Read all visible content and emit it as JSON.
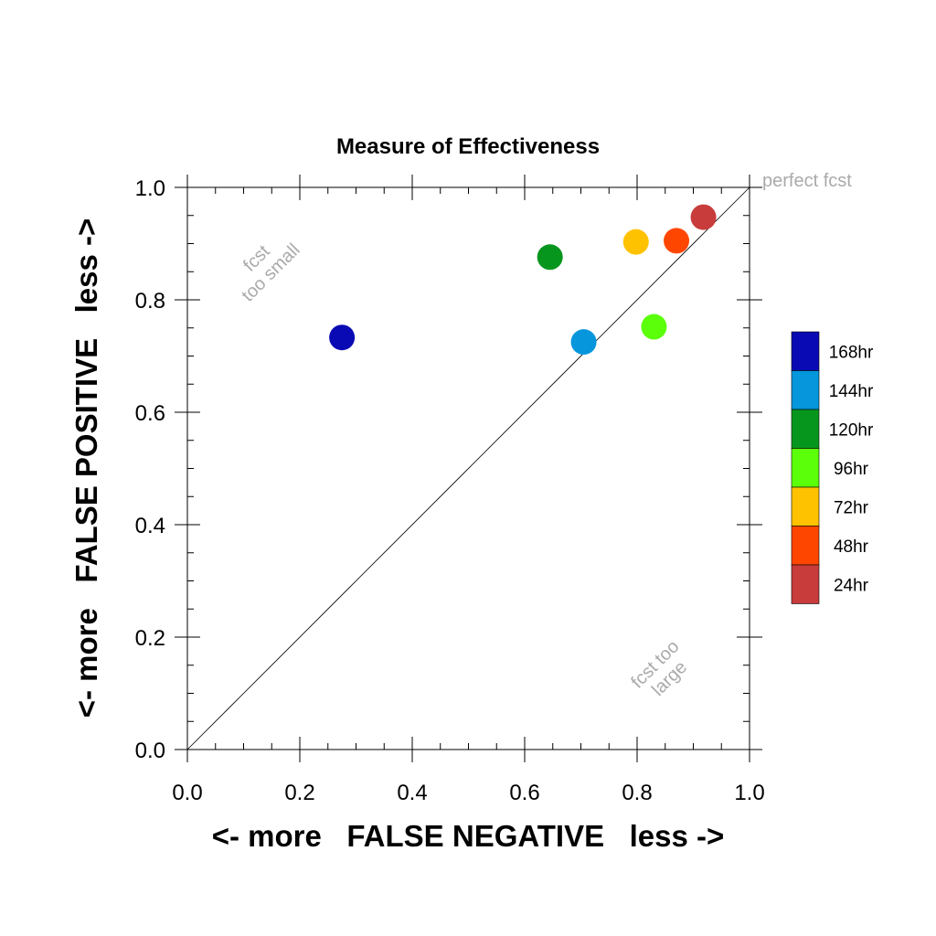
{
  "chart_data": {
    "type": "scatter",
    "title": "Measure of Effectiveness",
    "xlabel": "<- more   FALSE NEGATIVE   less ->",
    "ylabel": "<- more   FALSE POSITIVE   less ->",
    "xlim": [
      0,
      1
    ],
    "ylim": [
      0,
      1
    ],
    "xticks": [
      "0.0",
      "0.2",
      "0.4",
      "0.6",
      "0.8",
      "1.0"
    ],
    "yticks": [
      "0.0",
      "0.2",
      "0.4",
      "0.6",
      "0.8",
      "1.0"
    ],
    "grid": false,
    "diagonal": true,
    "legend_position": "right",
    "annotations": {
      "perfect": "perfect fcst",
      "small_1": "fcst",
      "small_2": "too small",
      "large_1": "fcst too",
      "large_2": "large"
    },
    "series": [
      {
        "name": "168hr",
        "color": "#0a0ab4",
        "x": 0.275,
        "y": 0.733
      },
      {
        "name": "144hr",
        "color": "#0596dc",
        "x": 0.705,
        "y": 0.725
      },
      {
        "name": "120hr",
        "color": "#06961e",
        "x": 0.645,
        "y": 0.876
      },
      {
        "name": "96hr",
        "color": "#5cff0a",
        "x": 0.83,
        "y": 0.752
      },
      {
        "name": "72hr",
        "color": "#ffc200",
        "x": 0.798,
        "y": 0.903
      },
      {
        "name": "48hr",
        "color": "#ff4600",
        "x": 0.87,
        "y": 0.905
      },
      {
        "name": "24hr",
        "color": "#c83c3c",
        "x": 0.918,
        "y": 0.947
      }
    ]
  }
}
